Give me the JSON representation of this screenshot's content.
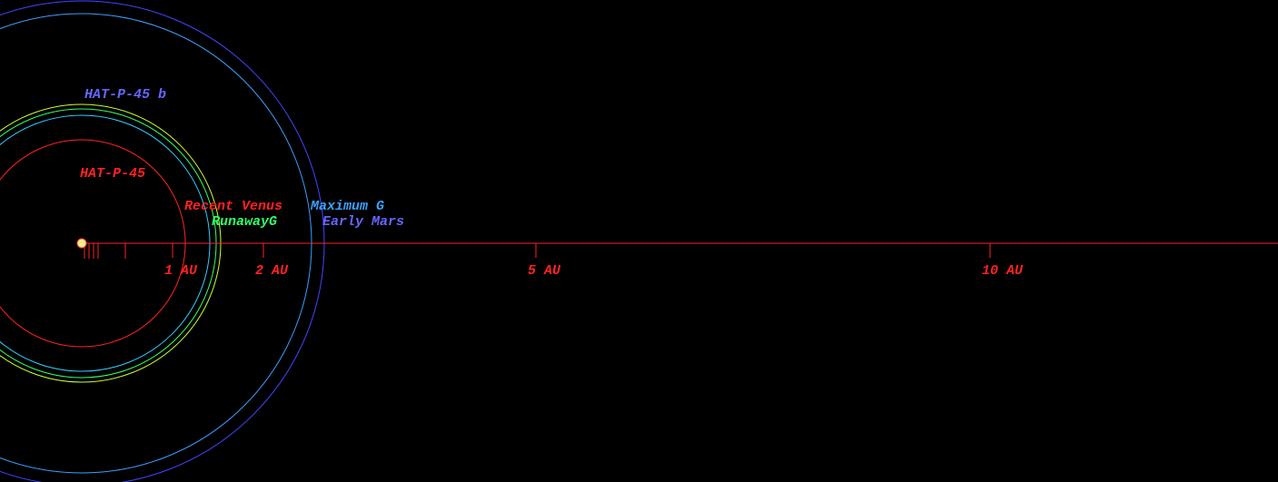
{
  "labels": {
    "planet": "HAT-P-45 b",
    "star": "HAT-P-45",
    "recent_venus": "Recent Venus",
    "maximum_greenhouse": "Maximum G",
    "runaway_greenhouse": "RunawayG",
    "early_mars": "Early Mars"
  },
  "axis": {
    "ticks": [
      {
        "value": 1,
        "label": "1 AU"
      },
      {
        "value": 2,
        "label": "2 AU"
      },
      {
        "value": 5,
        "label": "5 AU"
      },
      {
        "value": 10,
        "label": "10 AU"
      }
    ]
  }
}
